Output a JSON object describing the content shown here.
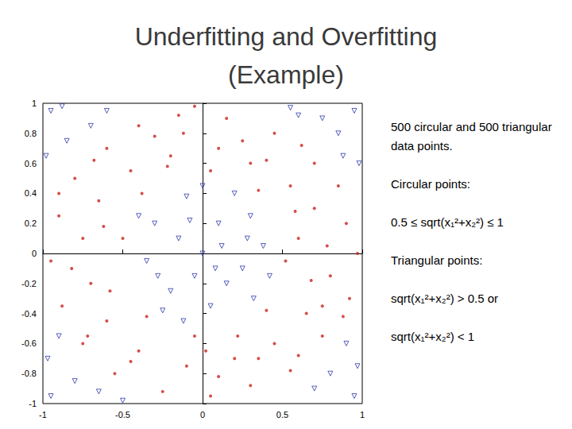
{
  "chart_data": {
    "type": "scatter",
    "title": "Underfitting and Overfitting\n(Example)",
    "annotations": [
      "500 circular and 500 triangular data points.",
      "Circular points:",
      "0.5 ≤ sqrt(x₁²+x₂²) ≤ 1",
      "Triangular points:",
      "sqrt(x₁²+x₂²) > 0.5 or",
      "sqrt(x₁²+x₂²) < 1"
    ],
    "xlim": [
      -1,
      1
    ],
    "xticks": [
      -1,
      -0.5,
      0,
      0.5,
      1
    ],
    "ylim": [
      -1,
      1
    ],
    "yticks": [
      -1,
      -0.8,
      -0.6,
      -0.4,
      -0.2,
      0,
      0.2,
      0.4,
      0.6,
      0.8,
      1
    ],
    "grid": false,
    "series": [
      {
        "color": "#cc1f1f",
        "marker": "circle",
        "x": [
          0.6,
          0.7,
          0.55,
          0.3,
          0.1,
          -0.2,
          -0.45,
          -0.65,
          -0.75,
          -0.7,
          -0.6,
          -0.4,
          -0.1,
          0.2,
          0.45,
          0.65,
          0.8,
          0.9,
          0.85,
          0.7,
          0.45,
          0.15,
          -0.15,
          -0.4,
          -0.6,
          -0.8,
          -0.9,
          -0.95,
          -0.88,
          -0.75,
          -0.55,
          -0.25,
          0.05,
          0.3,
          0.55,
          0.75,
          0.92,
          0.97,
          0.52,
          0.05,
          -0.5,
          -0.05,
          0.35,
          -0.38,
          -0.35,
          0.4,
          0.62,
          -0.68,
          -0.72,
          0.6,
          0.25,
          -0.3,
          -0.82,
          0.78,
          0.1,
          -0.58,
          0.58,
          -0.22,
          0.22,
          0.75,
          -0.12,
          0.4,
          -0.62,
          0.68,
          -0.45,
          0.35,
          -0.9,
          0.88,
          -0.05,
          0.02
        ],
        "values": [
          0.1,
          0.3,
          0.45,
          0.6,
          0.7,
          0.65,
          0.55,
          0.35,
          0.1,
          -0.2,
          -0.45,
          -0.65,
          -0.75,
          -0.7,
          -0.6,
          -0.4,
          -0.15,
          0.2,
          0.45,
          0.6,
          0.8,
          0.9,
          0.92,
          0.85,
          0.7,
          0.5,
          0.25,
          -0.05,
          -0.35,
          -0.6,
          -0.8,
          -0.92,
          -0.95,
          -0.88,
          -0.78,
          -0.55,
          -0.3,
          0,
          -0.05,
          0.55,
          0.1,
          -0.55,
          0.42,
          0.4,
          -0.42,
          -0.38,
          0.72,
          0.62,
          -0.55,
          -0.68,
          0.75,
          0.78,
          -0.1,
          0.05,
          -0.82,
          -0.25,
          0.28,
          0.58,
          -0.55,
          -0.35,
          0.8,
          0.62,
          0.18,
          -0.18,
          -0.72,
          -0.7,
          0.4,
          -0.42,
          0.98,
          -0.65
        ]
      },
      {
        "color": "#2a3aa8",
        "marker": "triangle",
        "x": [
          0,
          0.1,
          -0.15,
          0.25,
          -0.2,
          0.3,
          -0.3,
          0.05,
          -0.35,
          0.38,
          0.15,
          -0.1,
          0.2,
          -0.25,
          0.32,
          -0.05,
          0.12,
          -0.4,
          0.42,
          0,
          -0.12,
          0.28,
          -0.28,
          0.08,
          -0.08,
          0.95,
          0.85,
          0.75,
          0.98,
          -0.95,
          -0.85,
          -0.7,
          -0.98,
          -0.6,
          -0.95,
          -0.8,
          -0.65,
          -0.97,
          -0.9,
          0.95,
          0.8,
          0.7,
          0.97,
          0.6,
          0.9,
          -0.5,
          0.55,
          -0.88,
          0.88
        ],
        "values": [
          0,
          0.2,
          0.1,
          -0.1,
          -0.25,
          0.25,
          0.2,
          -0.35,
          -0.05,
          0.05,
          -0.2,
          0.38,
          0.4,
          -0.38,
          -0.3,
          -0.15,
          0.05,
          0.25,
          -0.15,
          0.45,
          -0.45,
          0.1,
          -0.15,
          -0.1,
          0.22,
          0.95,
          0.8,
          0.9,
          0.6,
          0.95,
          0.75,
          0.85,
          0.65,
          0.95,
          -0.95,
          -0.85,
          -0.92,
          -0.7,
          -0.55,
          -0.95,
          -0.8,
          -0.9,
          -0.75,
          0.92,
          -0.6,
          -0.98,
          0.97,
          0.98,
          0.65
        ]
      }
    ]
  }
}
